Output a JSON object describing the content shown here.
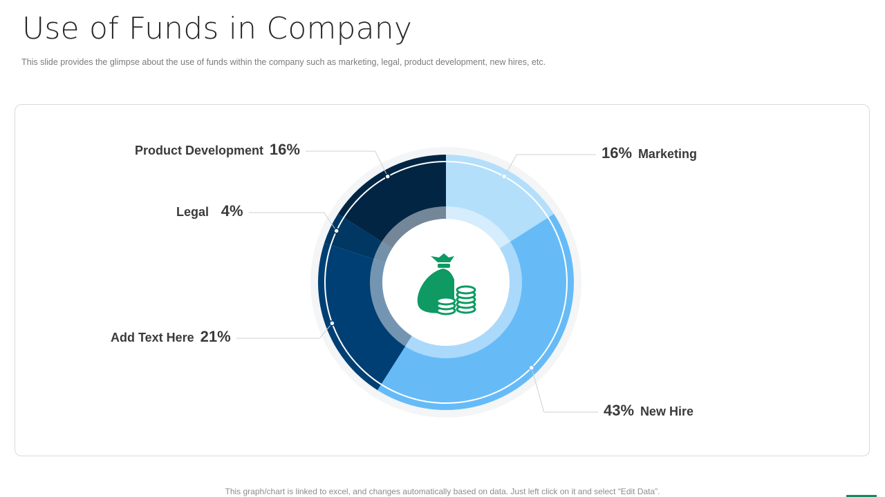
{
  "title": "Use of Funds in Company",
  "subtitle": "This slide provides  the glimpse about the use of funds within the company such as marketing, legal, product development,  new hires, etc.",
  "footer": "This graph/chart is linked to excel, and changes automatically based on data. Just left click on it and select “Edit Data”.",
  "colors": {
    "marketing": "#b3dffb",
    "new_hire": "#66bbf7",
    "add_text": "#003f73",
    "legal": "#003763",
    "product_dev": "#032544",
    "icon": "#0e9a62",
    "accent": "#0e8a63"
  },
  "center_icon": "money-bag-coins-icon",
  "chart_data": {
    "type": "pie",
    "title": "",
    "categories": [
      "Marketing",
      "New Hire",
      "Add Text Here",
      "Legal",
      "Product Development"
    ],
    "values": [
      16,
      43,
      21,
      4,
      16
    ],
    "labels": [
      "16%",
      "43%",
      "21%",
      "4%",
      "16%"
    ],
    "style": "donut"
  }
}
